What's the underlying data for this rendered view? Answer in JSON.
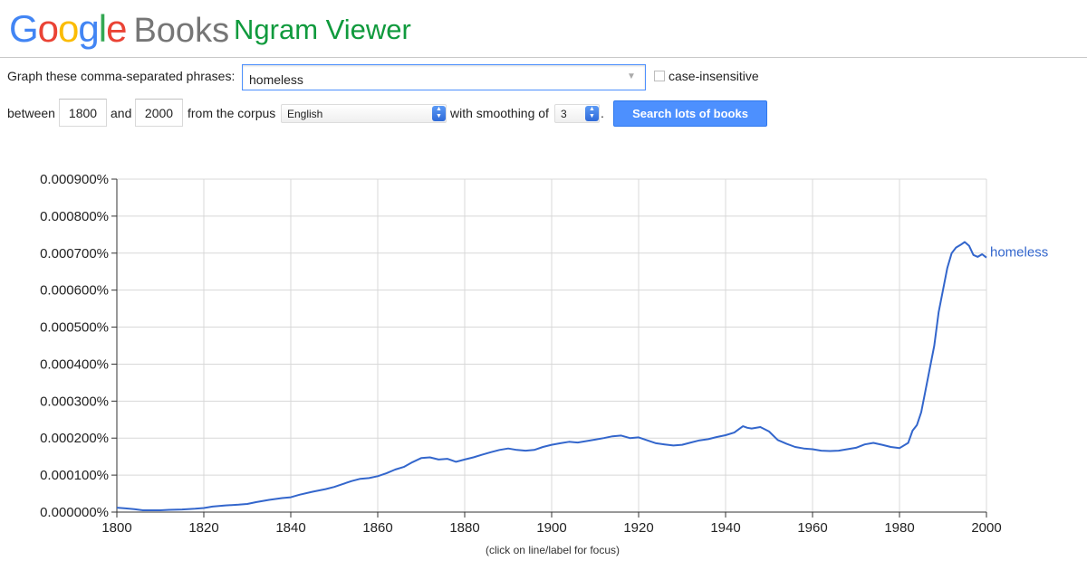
{
  "header": {
    "logo_google": "Google",
    "logo_books": "Books",
    "title": "Ngram Viewer",
    "logo_colors": [
      "#4285f4",
      "#ea4335",
      "#fbbc05",
      "#4285f4",
      "#34a853",
      "#ea4335"
    ]
  },
  "query": {
    "phrases_label": "Graph these comma-separated phrases:",
    "phrases_value": "homeless",
    "case_insensitive_label": "case-insensitive",
    "case_insensitive_checked": false,
    "between_label": "between",
    "year_start": "1800",
    "and_label": "and",
    "year_end": "2000",
    "corpus_label": "from the corpus",
    "corpus_value": "English",
    "smoothing_label": "with smoothing of",
    "smoothing_value": "3",
    "period": ".",
    "search_button": "Search lots of books"
  },
  "chart_data": {
    "type": "line",
    "xlim": [
      1800,
      2000
    ],
    "ylim": [
      0,
      0.0009
    ],
    "x_ticks": [
      1800,
      1820,
      1840,
      1860,
      1880,
      1900,
      1920,
      1940,
      1960,
      1980,
      2000
    ],
    "x_tick_labels": [
      "1800",
      "1820",
      "1840",
      "1860",
      "1880",
      "1900",
      "1920",
      "1940",
      "1960",
      "1980",
      "2000"
    ],
    "y_ticks": [
      0,
      0.0001,
      0.0002,
      0.0003,
      0.0004,
      0.0005,
      0.0006,
      0.0007,
      0.0008,
      0.0009
    ],
    "y_tick_labels": [
      "0.000000%",
      "0.000100%",
      "0.000200%",
      "0.000300%",
      "0.000400%",
      "0.000500%",
      "0.000600%",
      "0.000700%",
      "0.000800%",
      "0.000900%"
    ],
    "grid": true,
    "series_color": "#3366cc",
    "series": [
      {
        "name": "homeless",
        "x": [
          1800,
          1802,
          1804,
          1806,
          1808,
          1810,
          1812,
          1815,
          1818,
          1820,
          1822,
          1825,
          1828,
          1830,
          1832,
          1835,
          1838,
          1840,
          1842,
          1845,
          1848,
          1850,
          1852,
          1854,
          1856,
          1858,
          1860,
          1862,
          1864,
          1866,
          1868,
          1870,
          1872,
          1874,
          1876,
          1878,
          1880,
          1882,
          1884,
          1886,
          1888,
          1890,
          1892,
          1894,
          1896,
          1898,
          1900,
          1902,
          1904,
          1906,
          1908,
          1910,
          1912,
          1914,
          1916,
          1918,
          1920,
          1922,
          1924,
          1926,
          1928,
          1930,
          1932,
          1934,
          1936,
          1938,
          1940,
          1942,
          1944,
          1945,
          1946,
          1948,
          1950,
          1952,
          1954,
          1956,
          1958,
          1960,
          1962,
          1964,
          1966,
          1968,
          1970,
          1972,
          1974,
          1976,
          1978,
          1980,
          1982,
          1983,
          1984,
          1985,
          1986,
          1987,
          1988,
          1989,
          1990,
          1991,
          1992,
          1993,
          1994,
          1995,
          1996,
          1997,
          1998,
          1999,
          2000
        ],
        "values": [
          1.2e-05,
          1e-05,
          8e-06,
          5e-06,
          5e-06,
          5e-06,
          6e-06,
          7e-06,
          9e-06,
          1.1e-05,
          1.5e-05,
          1.8e-05,
          2e-05,
          2.2e-05,
          2.7e-05,
          3.3e-05,
          3.8e-05,
          4e-05,
          4.7e-05,
          5.5e-05,
          6.2e-05,
          6.8e-05,
          7.6e-05,
          8.4e-05,
          9e-05,
          9.2e-05,
          9.7e-05,
          0.000105,
          0.000115,
          0.000122,
          0.000135,
          0.000146,
          0.000148,
          0.000142,
          0.000144,
          0.000136,
          0.000142,
          0.000148,
          0.000155,
          0.000162,
          0.000168,
          0.000172,
          0.000168,
          0.000166,
          0.000168,
          0.000176,
          0.000182,
          0.000186,
          0.00019,
          0.000188,
          0.000192,
          0.000196,
          0.0002,
          0.000205,
          0.000207,
          0.0002,
          0.000202,
          0.000194,
          0.000186,
          0.000183,
          0.00018,
          0.000182,
          0.000188,
          0.000194,
          0.000197,
          0.000203,
          0.000208,
          0.000215,
          0.000232,
          0.000228,
          0.000226,
          0.00023,
          0.000218,
          0.000195,
          0.000185,
          0.000176,
          0.000172,
          0.00017,
          0.000166,
          0.000165,
          0.000166,
          0.00017,
          0.000174,
          0.000183,
          0.000187,
          0.000182,
          0.000176,
          0.000173,
          0.000187,
          0.00022,
          0.000235,
          0.00027,
          0.00033,
          0.00039,
          0.00045,
          0.00054,
          0.0006,
          0.00066,
          0.0007,
          0.000715,
          0.000722,
          0.00073,
          0.00072,
          0.000695,
          0.00069,
          0.000697,
          0.000688
        ]
      }
    ]
  },
  "footnote": "(click on line/label for focus)"
}
